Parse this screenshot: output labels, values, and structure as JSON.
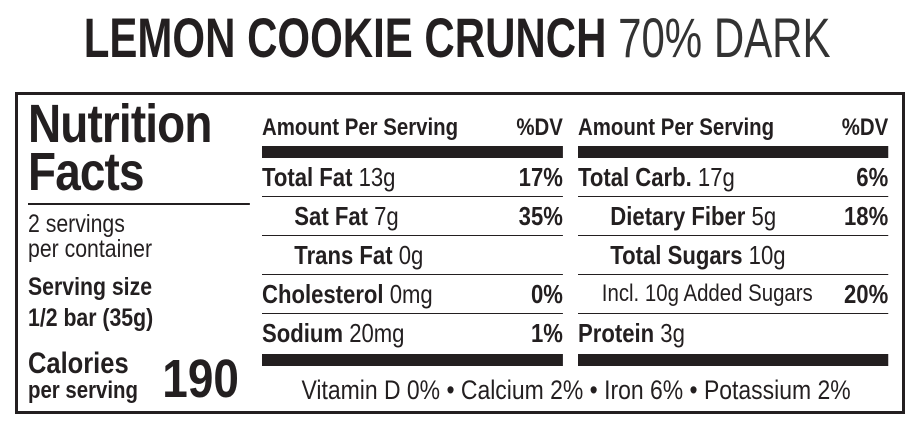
{
  "title": {
    "bold": "LEMON COOKIE CRUNCH",
    "light": "70% DARK"
  },
  "label": {
    "heading": [
      "Nutrition",
      "Facts"
    ],
    "servings": [
      "2 servings",
      "per container"
    ],
    "serving_size": [
      "Serving size",
      "1/2 bar (35g)"
    ],
    "calories": {
      "label": [
        "Calories",
        "per serving"
      ],
      "value": 190
    },
    "columns": [
      {
        "header": {
          "amount": "Amount Per Serving",
          "dv": "%DV"
        },
        "rows": [
          {
            "name": "Total Fat",
            "amount": "13g",
            "dv": "17%"
          },
          {
            "name": "Sat Fat",
            "amount": "7g",
            "dv": "35%"
          },
          {
            "name": "Trans Fat",
            "amount": "0g"
          },
          {
            "name": "Cholesterol",
            "amount": "0mg",
            "dv": "0%"
          },
          {
            "name": "Sodium",
            "amount": "20mg",
            "dv": "1%"
          }
        ]
      },
      {
        "header": {
          "amount": "Amount Per Serving",
          "dv": "%DV"
        },
        "rows": [
          {
            "name": "Total Carb.",
            "amount": "17g",
            "dv": "6%"
          },
          {
            "name": "Dietary Fiber",
            "amount": "5g",
            "dv": "18%"
          },
          {
            "name": "Total Sugars",
            "amount": "10g"
          },
          {
            "name": "Incl. 10g Added Sugars",
            "dv": "20%"
          },
          {
            "name": "Protein",
            "amount": "3g"
          }
        ]
      }
    ],
    "footer": "Vitamin D 0% • Calcium 2% • Iron 6% • Potassium 2%"
  }
}
